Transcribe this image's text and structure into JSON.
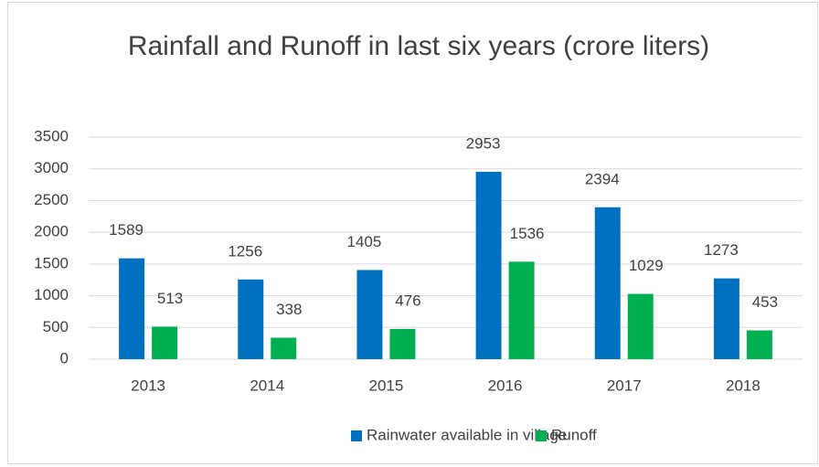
{
  "chart_data": {
    "type": "bar",
    "title": "Rainfall and Runoff in last six years (crore liters)",
    "categories": [
      "2013",
      "2014",
      "2015",
      "2016",
      "2017",
      "2018"
    ],
    "series": [
      {
        "name": "Rainwater available in village",
        "color": "#0070c0",
        "values": [
          1589,
          1256,
          1405,
          2953,
          2394,
          1273
        ]
      },
      {
        "name": "Runoff",
        "color": "#00b050",
        "values": [
          513,
          338,
          476,
          1536,
          1029,
          453
        ]
      }
    ],
    "ylim": [
      0,
      3500
    ],
    "yticks": [
      0,
      500,
      1000,
      1500,
      2000,
      2500,
      3000,
      3500
    ],
    "grid": true,
    "legend": "bottom"
  }
}
